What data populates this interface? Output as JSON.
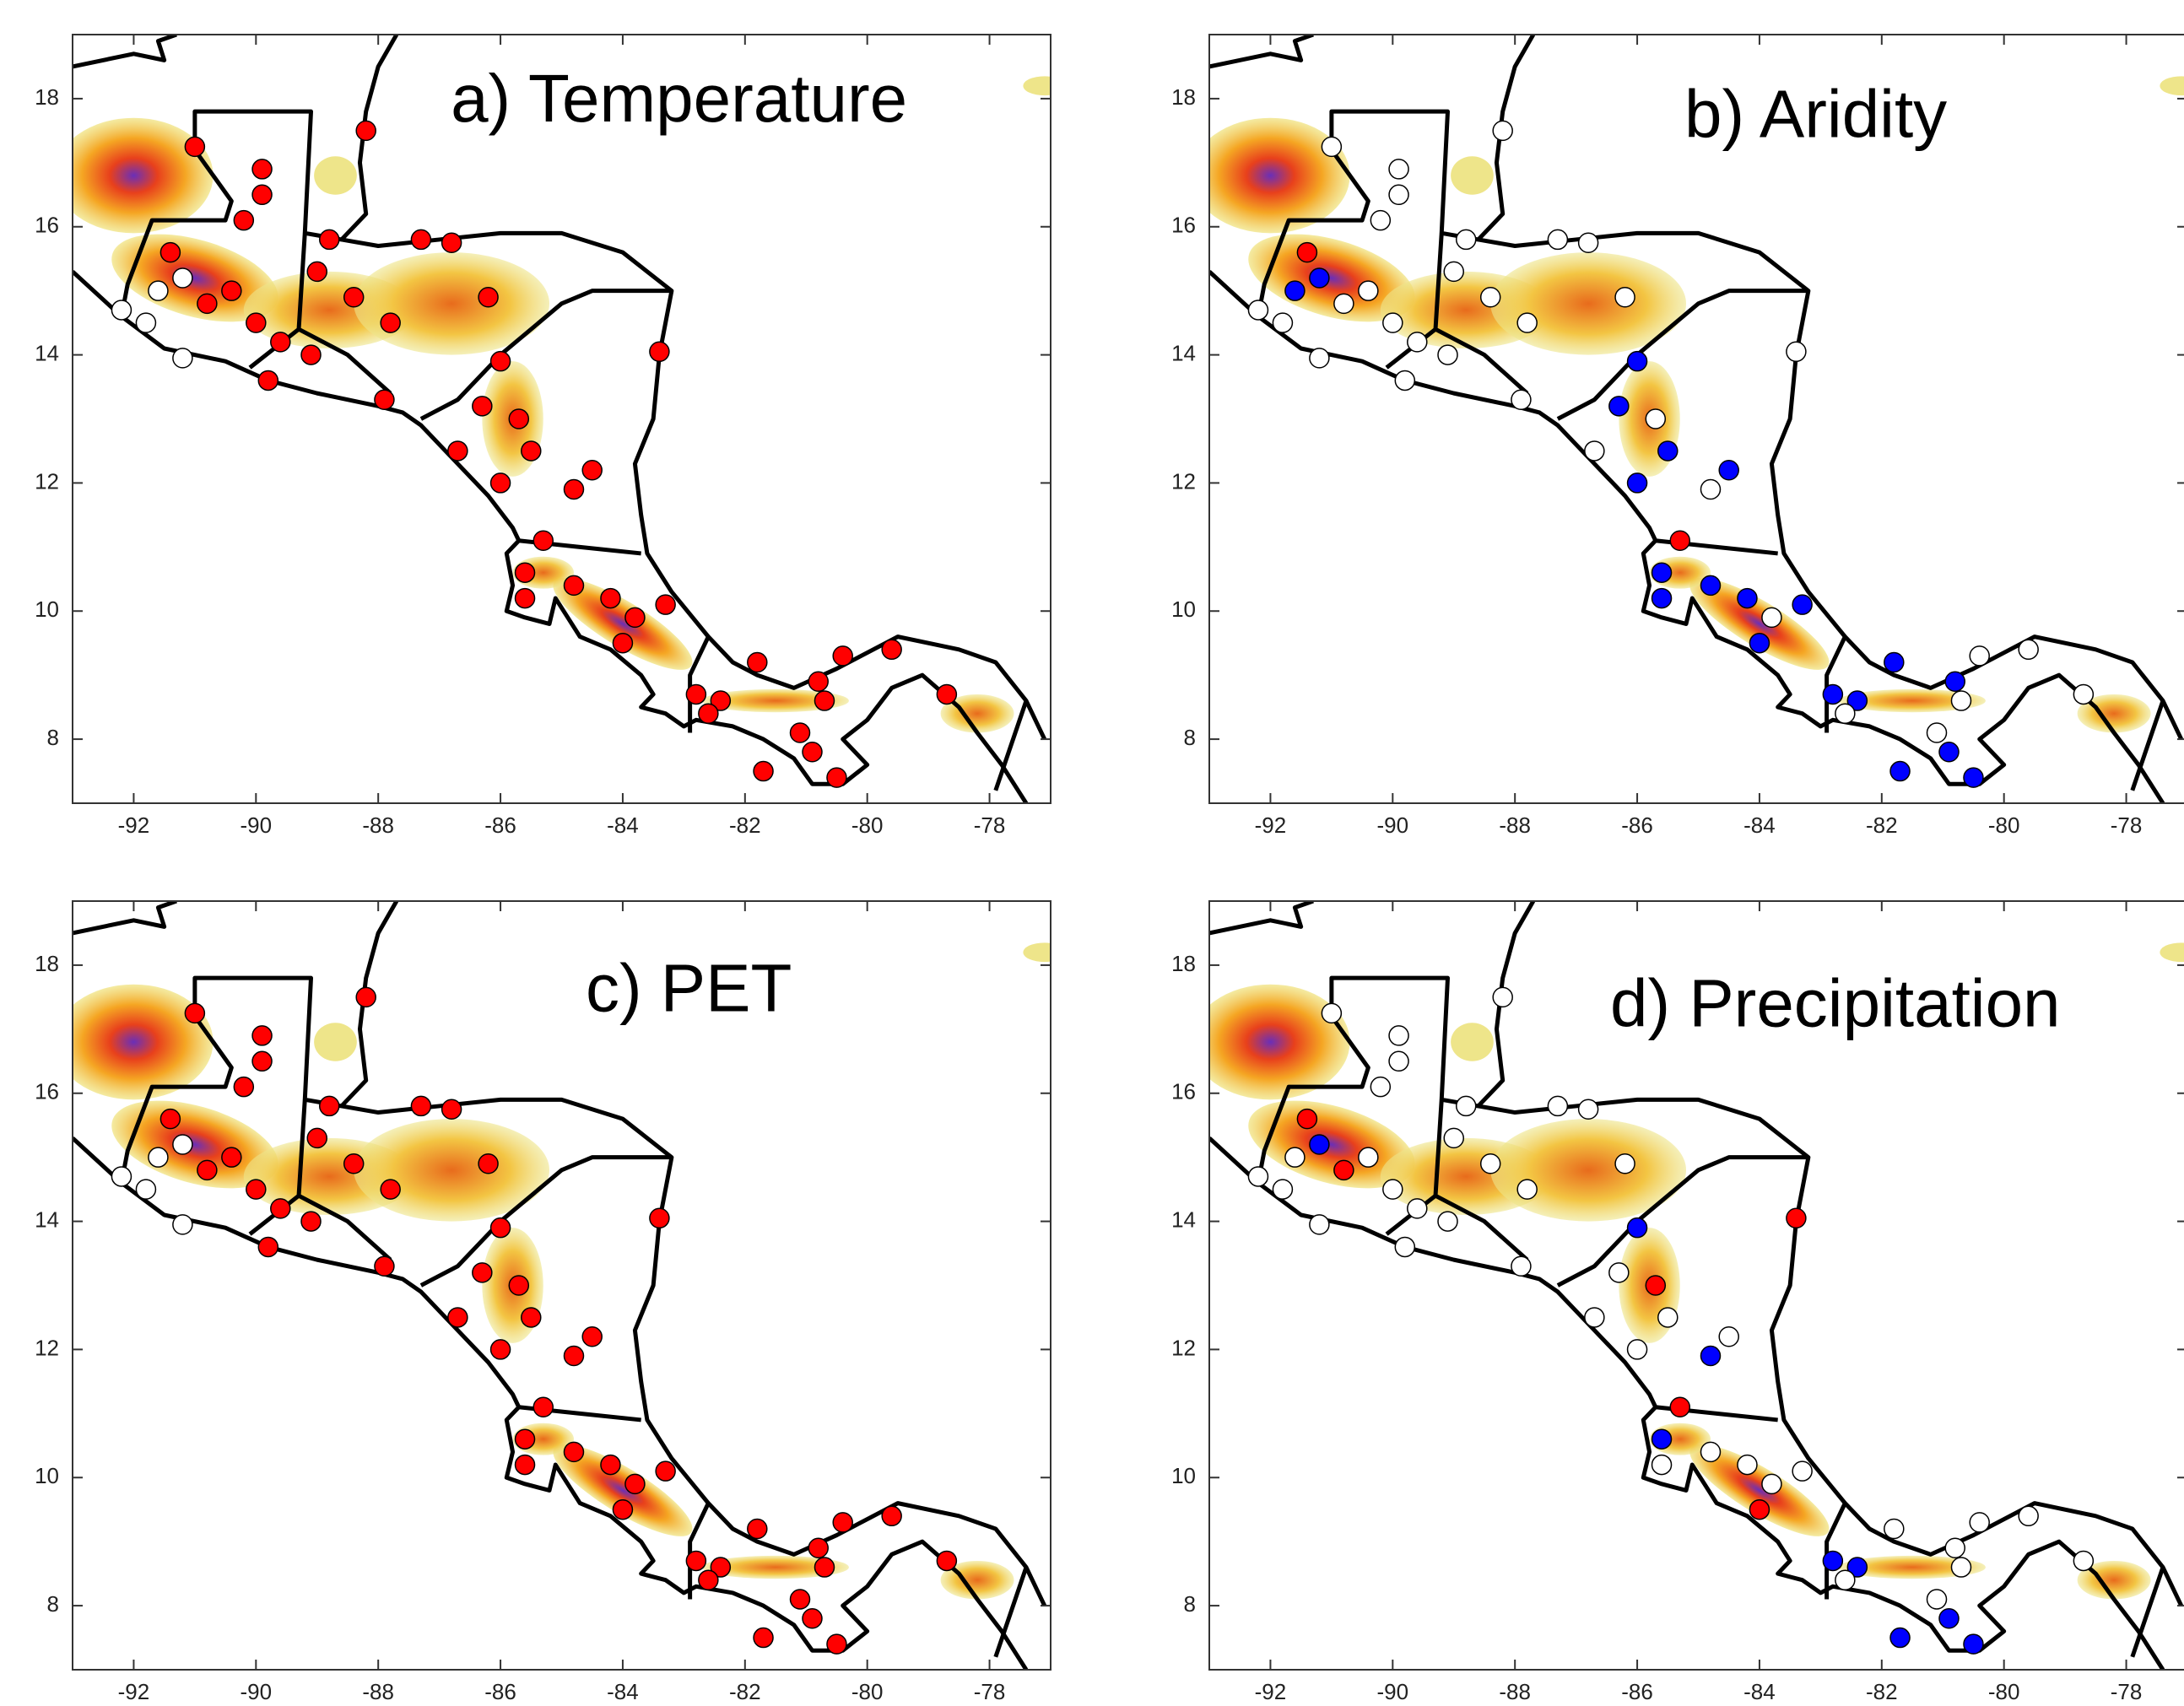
{
  "chart_data": [
    {
      "type": "scatter",
      "title": "a) Temperature",
      "x": [
        -91.0,
        -89.9,
        -89.9,
        -88.2,
        -90.2,
        -92.2,
        -91.8,
        -91.4,
        -91.2,
        -90.8,
        -90.4,
        -90.0,
        -89.6,
        -89.1,
        -89.8,
        -91.2,
        -89.0,
        -88.4,
        -87.8,
        -88.8,
        -87.3,
        -86.8,
        -86.2,
        -87.9,
        -83.4,
        -86.0,
        -86.3,
        -85.7,
        -85.5,
        -86.0,
        -84.5,
        -84.8,
        -86.7,
        -85.3,
        -85.6,
        -85.6,
        -84.8,
        -84.2,
        -83.8,
        -84.0,
        -83.3,
        -82.8,
        -82.4,
        -82.6,
        -81.8,
        -81.7,
        -80.8,
        -80.4,
        -80.7,
        -80.5,
        -80.9,
        -78.7,
        -79.6,
        -81.1,
        -91.6
      ],
      "y": [
        17.25,
        16.9,
        16.5,
        17.5,
        16.1,
        14.7,
        14.5,
        15.6,
        15.2,
        14.8,
        15.0,
        14.5,
        14.2,
        14.0,
        13.6,
        13.95,
        15.3,
        14.9,
        14.5,
        15.8,
        15.8,
        15.75,
        14.9,
        13.3,
        14.05,
        13.9,
        13.2,
        13.0,
        12.5,
        12.0,
        12.2,
        11.9,
        12.5,
        11.1,
        10.6,
        10.2,
        10.4,
        10.2,
        9.9,
        9.5,
        10.1,
        8.7,
        8.6,
        8.4,
        9.2,
        7.5,
        8.9,
        9.3,
        8.6,
        7.4,
        7.8,
        8.7,
        9.4,
        8.1,
        15.0
      ],
      "colors": [
        "#ff0000",
        "#ff0000",
        "#ff0000",
        "#ff0000",
        "#ff0000",
        "#ffffff",
        "#ffffff",
        "#ff0000",
        "#ffffff",
        "#ff0000",
        "#ff0000",
        "#ff0000",
        "#ff0000",
        "#ff0000",
        "#ff0000",
        "#ffffff",
        "#ff0000",
        "#ff0000",
        "#ff0000",
        "#ff0000",
        "#ff0000",
        "#ff0000",
        "#ff0000",
        "#ff0000",
        "#ff0000",
        "#ff0000",
        "#ff0000",
        "#ff0000",
        "#ff0000",
        "#ff0000",
        "#ff0000",
        "#ff0000",
        "#ff0000",
        "#ff0000",
        "#ff0000",
        "#ff0000",
        "#ff0000",
        "#ff0000",
        "#ff0000",
        "#ff0000",
        "#ff0000",
        "#ff0000",
        "#ff0000",
        "#ff0000",
        "#ff0000",
        "#ff0000",
        "#ff0000",
        "#ff0000",
        "#ff0000",
        "#ff0000",
        "#ff0000",
        "#ff0000",
        "#ff0000",
        "#ff0000",
        "#ffffff"
      ],
      "xlim": [
        -93,
        -77
      ],
      "ylim": [
        7,
        19
      ],
      "xticks": [
        -92,
        -90,
        -88,
        -86,
        -84,
        -82,
        -80,
        -78
      ],
      "yticks": [
        8,
        10,
        12,
        14,
        16,
        18
      ]
    },
    {
      "type": "scatter",
      "title": "b) Aridity",
      "x": [
        -91.0,
        -89.9,
        -89.9,
        -88.2,
        -90.2,
        -92.2,
        -91.8,
        -91.4,
        -91.2,
        -90.8,
        -90.4,
        -90.0,
        -89.6,
        -89.1,
        -89.8,
        -91.2,
        -89.0,
        -88.4,
        -87.8,
        -88.8,
        -87.3,
        -86.8,
        -86.2,
        -87.9,
        -83.4,
        -86.0,
        -86.3,
        -85.7,
        -85.5,
        -86.0,
        -84.5,
        -84.8,
        -86.7,
        -85.3,
        -85.6,
        -85.6,
        -84.8,
        -84.2,
        -83.8,
        -84.0,
        -83.3,
        -82.8,
        -82.4,
        -82.6,
        -81.8,
        -81.7,
        -80.8,
        -80.4,
        -80.7,
        -80.5,
        -80.9,
        -78.7,
        -79.6,
        -81.1,
        -91.6
      ],
      "y": [
        17.25,
        16.9,
        16.5,
        17.5,
        16.1,
        14.7,
        14.5,
        15.6,
        15.2,
        14.8,
        15.0,
        14.5,
        14.2,
        14.0,
        13.6,
        13.95,
        15.3,
        14.9,
        14.5,
        15.8,
        15.8,
        15.75,
        14.9,
        13.3,
        14.05,
        13.9,
        13.2,
        13.0,
        12.5,
        12.0,
        12.2,
        11.9,
        12.5,
        11.1,
        10.6,
        10.2,
        10.4,
        10.2,
        9.9,
        9.5,
        10.1,
        8.7,
        8.6,
        8.4,
        9.2,
        7.5,
        8.9,
        9.3,
        8.6,
        7.4,
        7.8,
        8.7,
        9.4,
        8.1,
        15.0
      ],
      "colors": [
        "#ffffff",
        "#ffffff",
        "#ffffff",
        "#ffffff",
        "#ffffff",
        "#ffffff",
        "#ffffff",
        "#ff0000",
        "#0000ff",
        "#ffffff",
        "#ffffff",
        "#ffffff",
        "#ffffff",
        "#ffffff",
        "#ffffff",
        "#ffffff",
        "#ffffff",
        "#ffffff",
        "#ffffff",
        "#ffffff",
        "#ffffff",
        "#ffffff",
        "#ffffff",
        "#ffffff",
        "#ffffff",
        "#0000ff",
        "#0000ff",
        "#ffffff",
        "#0000ff",
        "#0000ff",
        "#0000ff",
        "#ffffff",
        "#ffffff",
        "#ff0000",
        "#0000ff",
        "#0000ff",
        "#0000ff",
        "#0000ff",
        "#ffffff",
        "#0000ff",
        "#0000ff",
        "#0000ff",
        "#0000ff",
        "#ffffff",
        "#0000ff",
        "#0000ff",
        "#0000ff",
        "#ffffff",
        "#ffffff",
        "#0000ff",
        "#0000ff",
        "#ffffff",
        "#ffffff",
        "#ffffff",
        "#0000ff"
      ],
      "xlim": [
        -93,
        -77
      ],
      "ylim": [
        7,
        19
      ],
      "xticks": [
        -92,
        -90,
        -88,
        -86,
        -84,
        -82,
        -80,
        -78
      ],
      "yticks": [
        8,
        10,
        12,
        14,
        16,
        18
      ]
    },
    {
      "type": "scatter",
      "title": "c) PET",
      "x": [
        -91.0,
        -89.9,
        -89.9,
        -88.2,
        -90.2,
        -92.2,
        -91.8,
        -91.4,
        -91.2,
        -90.8,
        -90.4,
        -90.0,
        -89.6,
        -89.1,
        -89.8,
        -91.2,
        -89.0,
        -88.4,
        -87.8,
        -88.8,
        -87.3,
        -86.8,
        -86.2,
        -87.9,
        -83.4,
        -86.0,
        -86.3,
        -85.7,
        -85.5,
        -86.0,
        -84.5,
        -84.8,
        -86.7,
        -85.3,
        -85.6,
        -85.6,
        -84.8,
        -84.2,
        -83.8,
        -84.0,
        -83.3,
        -82.8,
        -82.4,
        -82.6,
        -81.8,
        -81.7,
        -80.8,
        -80.4,
        -80.7,
        -80.5,
        -80.9,
        -78.7,
        -79.6,
        -81.1,
        -91.6
      ],
      "y": [
        17.25,
        16.9,
        16.5,
        17.5,
        16.1,
        14.7,
        14.5,
        15.6,
        15.2,
        14.8,
        15.0,
        14.5,
        14.2,
        14.0,
        13.6,
        13.95,
        15.3,
        14.9,
        14.5,
        15.8,
        15.8,
        15.75,
        14.9,
        13.3,
        14.05,
        13.9,
        13.2,
        13.0,
        12.5,
        12.0,
        12.2,
        11.9,
        12.5,
        11.1,
        10.6,
        10.2,
        10.4,
        10.2,
        9.9,
        9.5,
        10.1,
        8.7,
        8.6,
        8.4,
        9.2,
        7.5,
        8.9,
        9.3,
        8.6,
        7.4,
        7.8,
        8.7,
        9.4,
        8.1,
        15.0
      ],
      "colors": [
        "#ff0000",
        "#ff0000",
        "#ff0000",
        "#ff0000",
        "#ff0000",
        "#ffffff",
        "#ffffff",
        "#ff0000",
        "#ffffff",
        "#ff0000",
        "#ff0000",
        "#ff0000",
        "#ff0000",
        "#ff0000",
        "#ff0000",
        "#ffffff",
        "#ff0000",
        "#ff0000",
        "#ff0000",
        "#ff0000",
        "#ff0000",
        "#ff0000",
        "#ff0000",
        "#ff0000",
        "#ff0000",
        "#ff0000",
        "#ff0000",
        "#ff0000",
        "#ff0000",
        "#ff0000",
        "#ff0000",
        "#ff0000",
        "#ff0000",
        "#ff0000",
        "#ff0000",
        "#ff0000",
        "#ff0000",
        "#ff0000",
        "#ff0000",
        "#ff0000",
        "#ff0000",
        "#ff0000",
        "#ff0000",
        "#ff0000",
        "#ff0000",
        "#ff0000",
        "#ff0000",
        "#ff0000",
        "#ff0000",
        "#ff0000",
        "#ff0000",
        "#ff0000",
        "#ff0000",
        "#ff0000",
        "#ffffff"
      ],
      "xlim": [
        -93,
        -77
      ],
      "ylim": [
        7,
        19
      ],
      "xticks": [
        -92,
        -90,
        -88,
        -86,
        -84,
        -82,
        -80,
        -78
      ],
      "yticks": [
        8,
        10,
        12,
        14,
        16,
        18
      ]
    },
    {
      "type": "scatter",
      "title": "d) Precipitation",
      "x": [
        -91.0,
        -89.9,
        -89.9,
        -88.2,
        -90.2,
        -92.2,
        -91.8,
        -91.4,
        -91.2,
        -90.8,
        -90.4,
        -90.0,
        -89.6,
        -89.1,
        -89.8,
        -91.2,
        -89.0,
        -88.4,
        -87.8,
        -88.8,
        -87.3,
        -86.8,
        -86.2,
        -87.9,
        -83.4,
        -86.0,
        -86.3,
        -85.7,
        -85.5,
        -86.0,
        -84.5,
        -84.8,
        -86.7,
        -85.3,
        -85.6,
        -85.6,
        -84.8,
        -84.2,
        -83.8,
        -84.0,
        -83.3,
        -82.8,
        -82.4,
        -82.6,
        -81.8,
        -81.7,
        -80.8,
        -80.4,
        -80.7,
        -80.5,
        -80.9,
        -78.7,
        -79.6,
        -81.1,
        -91.6
      ],
      "y": [
        17.25,
        16.9,
        16.5,
        17.5,
        16.1,
        14.7,
        14.5,
        15.6,
        15.2,
        14.8,
        15.0,
        14.5,
        14.2,
        14.0,
        13.6,
        13.95,
        15.3,
        14.9,
        14.5,
        15.8,
        15.8,
        15.75,
        14.9,
        13.3,
        14.05,
        13.9,
        13.2,
        13.0,
        12.5,
        12.0,
        12.2,
        11.9,
        12.5,
        11.1,
        10.6,
        10.2,
        10.4,
        10.2,
        9.9,
        9.5,
        10.1,
        8.7,
        8.6,
        8.4,
        9.2,
        7.5,
        8.9,
        9.3,
        8.6,
        7.4,
        7.8,
        8.7,
        9.4,
        8.1,
        15.0
      ],
      "colors": [
        "#ffffff",
        "#ffffff",
        "#ffffff",
        "#ffffff",
        "#ffffff",
        "#ffffff",
        "#ffffff",
        "#ff0000",
        "#0000ff",
        "#ff0000",
        "#ffffff",
        "#ffffff",
        "#ffffff",
        "#ffffff",
        "#ffffff",
        "#ffffff",
        "#ffffff",
        "#ffffff",
        "#ffffff",
        "#ffffff",
        "#ffffff",
        "#ffffff",
        "#ffffff",
        "#ffffff",
        "#ff0000",
        "#0000ff",
        "#ffffff",
        "#ff0000",
        "#ffffff",
        "#ffffff",
        "#ffffff",
        "#0000ff",
        "#ffffff",
        "#ff0000",
        "#0000ff",
        "#ffffff",
        "#ffffff",
        "#ffffff",
        "#ffffff",
        "#ff0000",
        "#ffffff",
        "#0000ff",
        "#0000ff",
        "#ffffff",
        "#ffffff",
        "#0000ff",
        "#ffffff",
        "#ffffff",
        "#ffffff",
        "#0000ff",
        "#0000ff",
        "#ffffff",
        "#ffffff",
        "#ffffff",
        "#ffffff"
      ],
      "xlim": [
        -93,
        -77
      ],
      "ylim": [
        7,
        19
      ],
      "xticks": [
        -92,
        -90,
        -88,
        -86,
        -84,
        -82,
        -80,
        -78
      ],
      "yticks": [
        8,
        10,
        12,
        14,
        16,
        18
      ]
    }
  ]
}
